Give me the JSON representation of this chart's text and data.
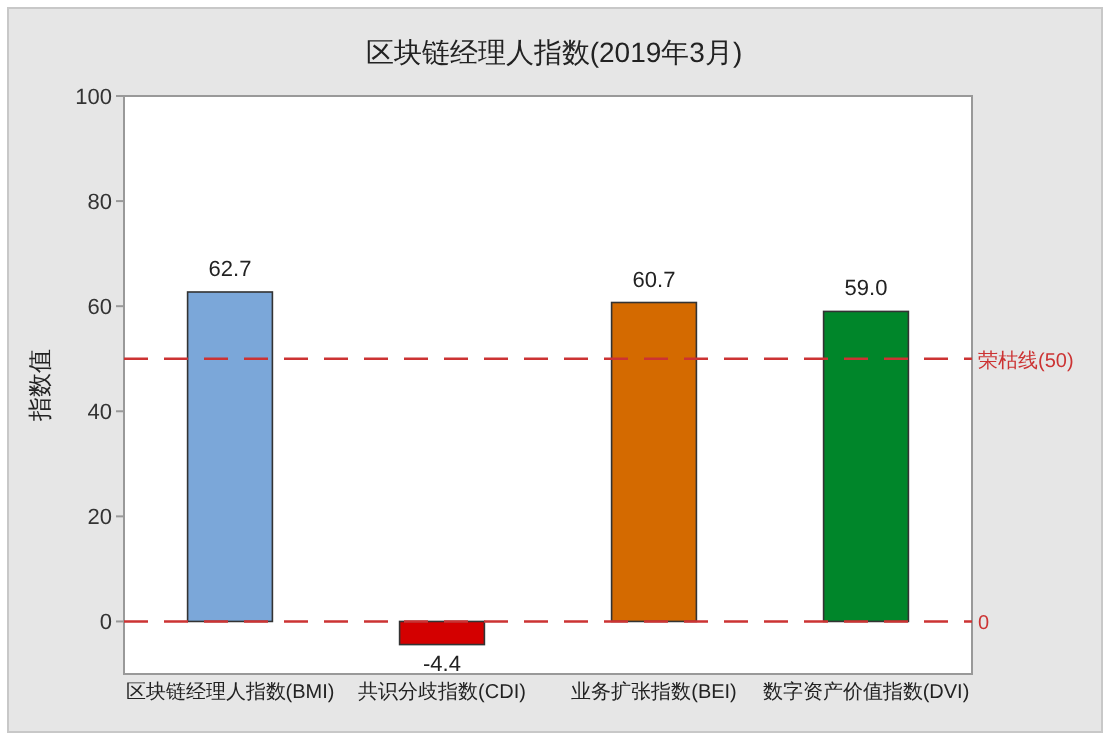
{
  "chart_data": {
    "type": "bar",
    "title": "区块链经理人指数(2019年3月)",
    "ylabel": "指数值",
    "categories": [
      "区块链经理人指数(BMI)",
      "共识分歧指数(CDI)",
      "业务扩张指数(BEI)",
      "数字资产价值指数(DVI)"
    ],
    "values": [
      62.7,
      -4.4,
      60.7,
      59.0
    ],
    "colors": [
      "#7ba7d9",
      "#d40000",
      "#d46a00",
      "#00862a"
    ],
    "value_labels": [
      "62.7",
      "-4.4",
      "60.7",
      "59.0"
    ],
    "ylim": [
      -10,
      100
    ],
    "yticks": [
      0,
      20,
      40,
      60,
      80,
      100
    ],
    "ref_lines": [
      {
        "axis": "y",
        "value": 50,
        "label": "荣枯线(50)",
        "color": "#cc3333",
        "line_style": "dashed"
      },
      {
        "axis": "y",
        "value": 0,
        "label": "0",
        "color": "#cc3333",
        "line_style": "dashed"
      }
    ]
  }
}
